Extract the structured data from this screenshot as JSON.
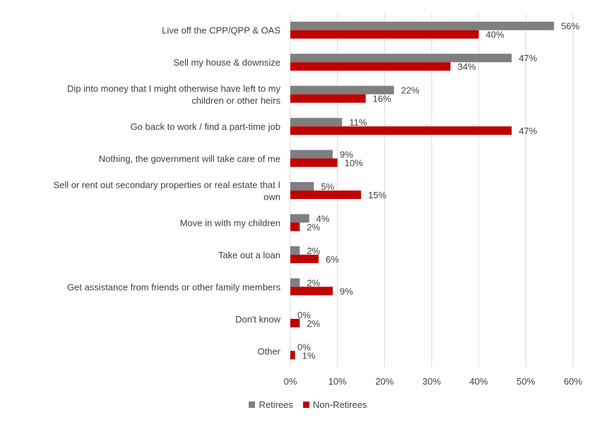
{
  "chart_data": {
    "type": "bar",
    "orientation": "horizontal",
    "categories": [
      [
        "Live off the CPP/QPP & OAS"
      ],
      [
        "Sell my house & downsize"
      ],
      [
        "Dip into money that I might otherwise have left to my",
        "children or other heirs"
      ],
      [
        "Go back to work / find a part-time job"
      ],
      [
        "Nothing, the government will take care of me"
      ],
      [
        "Sell or rent out secondary properties or real estate that I",
        "own"
      ],
      [
        "Move in with my children"
      ],
      [
        "Take out a loan"
      ],
      [
        "Get assistance from friends or other family members"
      ],
      [
        "Don't know"
      ],
      [
        "Other"
      ]
    ],
    "series": [
      {
        "name": "Retirees",
        "color": "#7f7f7f",
        "values": [
          56,
          47,
          22,
          11,
          9,
          5,
          4,
          2,
          2,
          0,
          0
        ]
      },
      {
        "name": "Non-Retirees",
        "color": "#c00000",
        "values": [
          40,
          34,
          16,
          47,
          10,
          15,
          2,
          6,
          9,
          2,
          1
        ]
      }
    ],
    "value_suffix": "%",
    "xlim": [
      0,
      60
    ],
    "xticks": [
      "0%",
      "10%",
      "20%",
      "30%",
      "40%",
      "50%",
      "60%"
    ],
    "grid": true,
    "legend_position": "bottom"
  }
}
